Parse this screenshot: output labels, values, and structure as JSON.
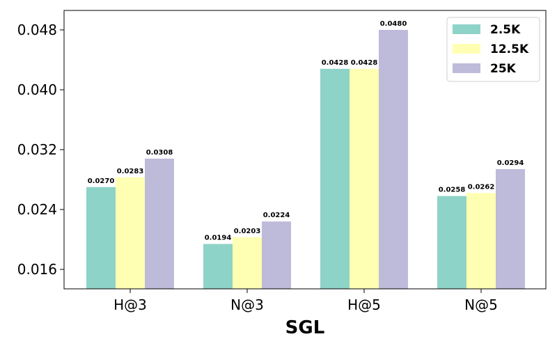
{
  "chart_data": {
    "type": "bar",
    "title": "",
    "xlabel": "SGL",
    "ylabel": "",
    "categories": [
      "H@3",
      "N@3",
      "H@5",
      "N@5"
    ],
    "series": [
      {
        "name": "2.5K",
        "color": "#8ed3c7",
        "values": [
          0.027,
          0.0194,
          0.0428,
          0.0258
        ],
        "labels": [
          "0.0270",
          "0.0194",
          "0.0428",
          "0.0258"
        ]
      },
      {
        "name": "12.5K",
        "color": "#ffffb3",
        "values": [
          0.0283,
          0.0203,
          0.0428,
          0.0262
        ],
        "labels": [
          "0.0283",
          "0.0203",
          "0.0428",
          "0.0262"
        ]
      },
      {
        "name": "25K",
        "color": "#bebada",
        "values": [
          0.0308,
          0.0224,
          0.048,
          0.0294
        ],
        "labels": [
          "0.0308",
          "0.0224",
          "0.0480",
          "0.0294"
        ]
      }
    ],
    "ylim": [
      0.0134,
      0.0506
    ],
    "yticks": [
      0.016,
      0.024,
      0.032,
      0.04,
      0.048
    ],
    "ytick_labels": [
      "0.016",
      "0.024",
      "0.032",
      "0.040",
      "0.048"
    ],
    "legend_position": "top-right",
    "grid": false
  }
}
